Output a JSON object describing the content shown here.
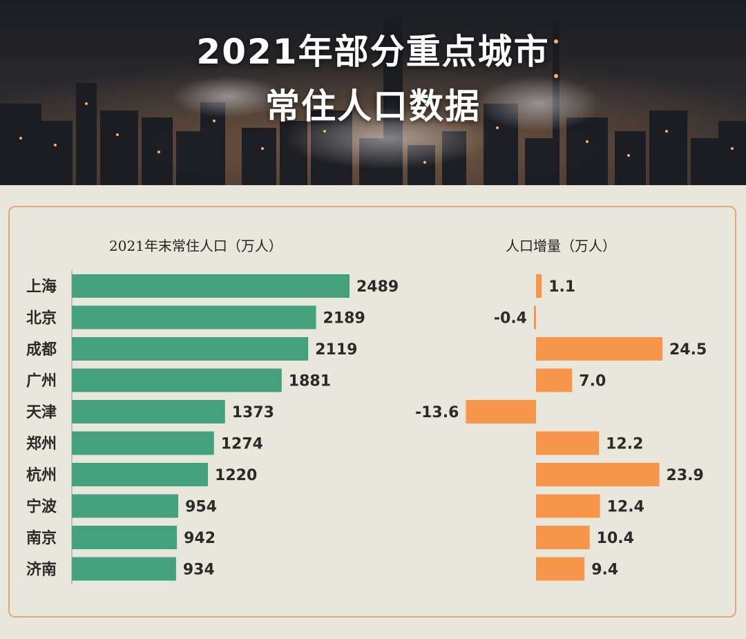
{
  "title_lines": [
    "2021年部分重点城市",
    "常住人口数据"
  ],
  "chart_data": [
    {
      "type": "bar",
      "orientation": "horizontal",
      "title": "2021年末常住人口（万人）",
      "categories": [
        "上海",
        "北京",
        "成都",
        "广州",
        "天津",
        "郑州",
        "杭州",
        "宁波",
        "南京",
        "济南"
      ],
      "values": [
        2489,
        2189,
        2119,
        1881,
        1373,
        1274,
        1220,
        954,
        942,
        934
      ],
      "value_labels": [
        "2489",
        "2189",
        "2119",
        "1881",
        "1373",
        "1274",
        "1220",
        "954",
        "942",
        "934"
      ],
      "xlim": [
        0,
        2489
      ],
      "color": "#44a07d"
    },
    {
      "type": "bar",
      "orientation": "horizontal",
      "title": "人口增量（万人）",
      "categories": [
        "上海",
        "北京",
        "成都",
        "广州",
        "天津",
        "郑州",
        "杭州",
        "宁波",
        "南京",
        "济南"
      ],
      "values": [
        1.1,
        -0.4,
        24.5,
        7.0,
        -13.6,
        12.2,
        23.9,
        12.4,
        10.4,
        9.4
      ],
      "value_labels": [
        "1.1",
        "-0.4",
        "24.5",
        "7.0",
        "-13.6",
        "12.2",
        "23.9",
        "12.4",
        "10.4",
        "9.4"
      ],
      "color": "#f7964a"
    }
  ]
}
